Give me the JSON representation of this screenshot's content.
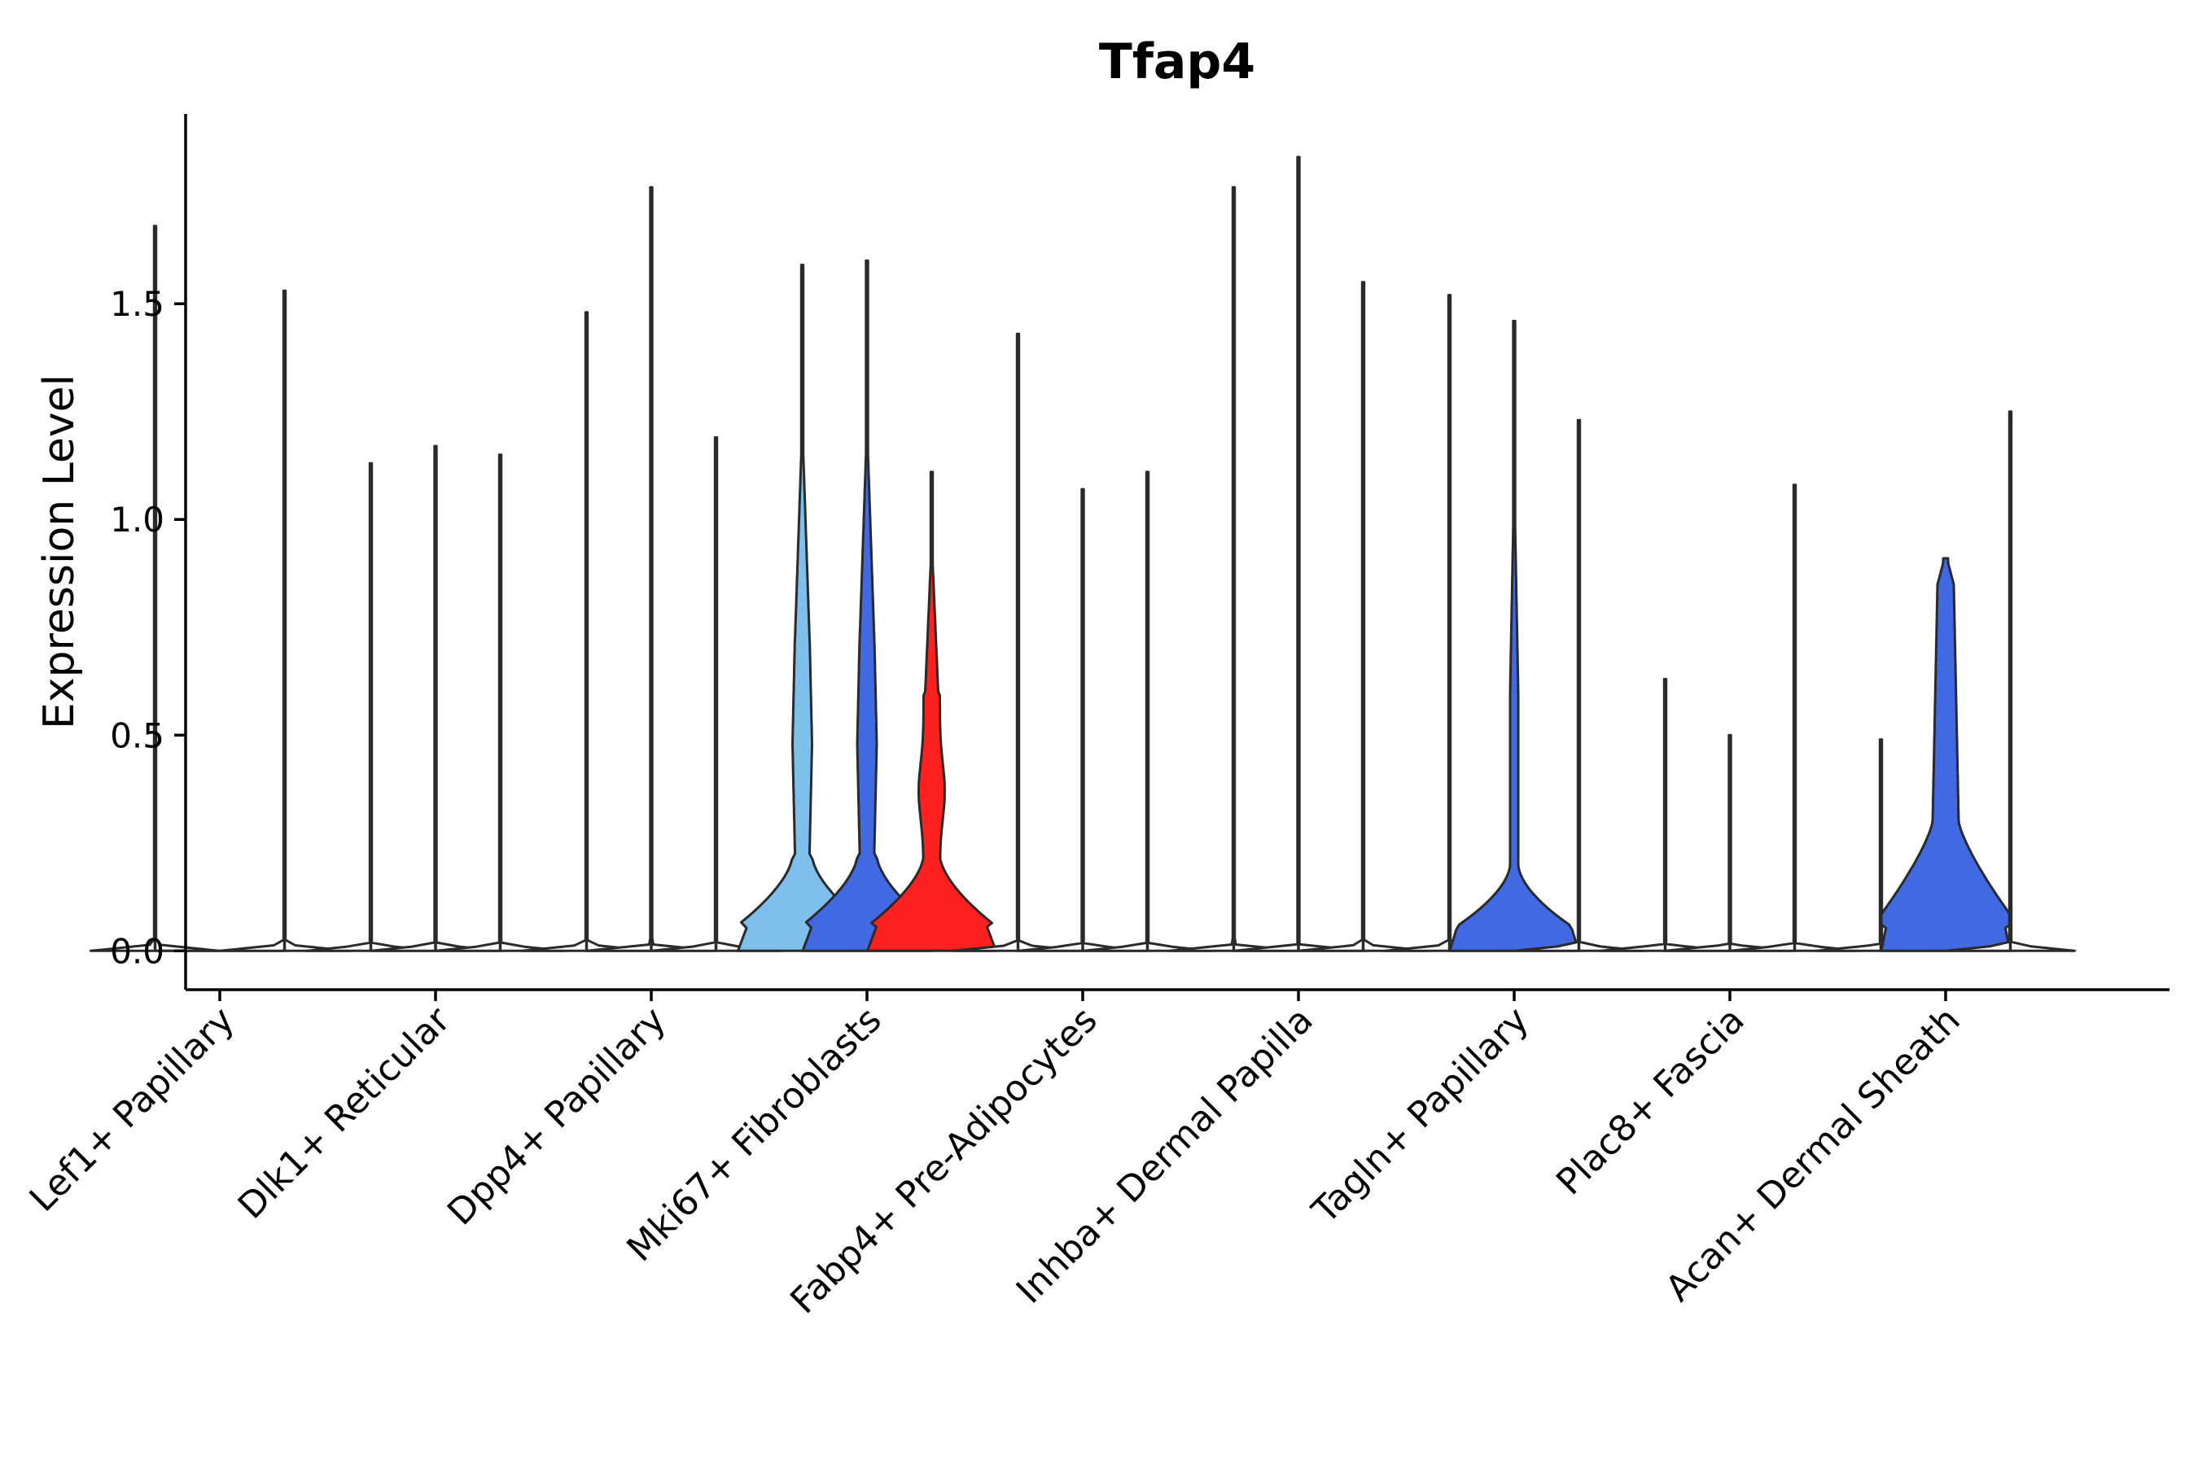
{
  "chart_data": {
    "type": "violin",
    "title": "Tfap4",
    "xlabel": "",
    "ylabel": "Expression Level",
    "ylim": [
      -0.09,
      1.94
    ],
    "yticks": [
      0.0,
      0.5,
      1.0,
      1.5
    ],
    "ytick_labels": [
      "0.0",
      "0.5",
      "1.0",
      "1.5"
    ],
    "categories": [
      "Lef1+ Papillary",
      "Dlk1+ Reticular",
      "Dpp4+ Papillary",
      "Mki67+ Fibroblasts",
      "Fabp4+ Pre-Adipocytes",
      "Inhba+ Dermal Papilla",
      "Tagln+ Papillary",
      "Plac8+ Fascia",
      "Acan+ Dermal Sheath"
    ],
    "groups_per_category": 3,
    "violins": [
      {
        "category": 0,
        "slot": 0,
        "max": 1.68,
        "shape": "flat",
        "color": null
      },
      {
        "category": 0,
        "slot": 1,
        "max": 0.0,
        "shape": "flat",
        "color": null
      },
      {
        "category": 0,
        "slot": 2,
        "max": 1.53,
        "shape": "flat",
        "color": null
      },
      {
        "category": 1,
        "slot": 0,
        "max": 1.13,
        "shape": "flat",
        "color": null
      },
      {
        "category": 1,
        "slot": 1,
        "max": 1.17,
        "shape": "flat",
        "color": null
      },
      {
        "category": 1,
        "slot": 2,
        "max": 1.15,
        "shape": "flat",
        "color": null
      },
      {
        "category": 2,
        "slot": 0,
        "max": 1.48,
        "shape": "flat",
        "color": null
      },
      {
        "category": 2,
        "slot": 1,
        "max": 1.77,
        "shape": "flat",
        "color": null
      },
      {
        "category": 2,
        "slot": 2,
        "max": 1.19,
        "shape": "flat",
        "color": null
      },
      {
        "category": 3,
        "slot": 0,
        "max": 1.59,
        "shape": "mid",
        "color": "#7fbfeb"
      },
      {
        "category": 3,
        "slot": 1,
        "max": 1.6,
        "shape": "mid",
        "color": "#4169e1"
      },
      {
        "category": 3,
        "slot": 2,
        "max": 1.11,
        "shape": "red",
        "color": "#ff2020"
      },
      {
        "category": 4,
        "slot": 0,
        "max": 1.43,
        "shape": "flat",
        "color": null
      },
      {
        "category": 4,
        "slot": 1,
        "max": 1.07,
        "shape": "flat",
        "color": null
      },
      {
        "category": 4,
        "slot": 2,
        "max": 1.11,
        "shape": "flat",
        "color": null
      },
      {
        "category": 5,
        "slot": 0,
        "max": 1.77,
        "shape": "flat",
        "color": null
      },
      {
        "category": 5,
        "slot": 1,
        "max": 1.84,
        "shape": "flat",
        "color": null
      },
      {
        "category": 5,
        "slot": 2,
        "max": 1.55,
        "shape": "flat",
        "color": null
      },
      {
        "category": 6,
        "slot": 0,
        "max": 1.52,
        "shape": "flat",
        "color": null
      },
      {
        "category": 6,
        "slot": 1,
        "max": 1.46,
        "shape": "tagln",
        "color": "#4169e1"
      },
      {
        "category": 6,
        "slot": 2,
        "max": 1.23,
        "shape": "flat",
        "color": null
      },
      {
        "category": 7,
        "slot": 0,
        "max": 0.63,
        "shape": "flat",
        "color": null
      },
      {
        "category": 7,
        "slot": 1,
        "max": 0.5,
        "shape": "flat",
        "color": null
      },
      {
        "category": 7,
        "slot": 2,
        "max": 1.08,
        "shape": "flat",
        "color": null
      },
      {
        "category": 8,
        "slot": 0,
        "max": 0.49,
        "shape": "flat",
        "color": null
      },
      {
        "category": 8,
        "slot": 1,
        "max": 0.91,
        "shape": "acan",
        "color": "#4169e1"
      },
      {
        "category": 8,
        "slot": 2,
        "max": 1.25,
        "shape": "flat",
        "color": null
      }
    ]
  }
}
